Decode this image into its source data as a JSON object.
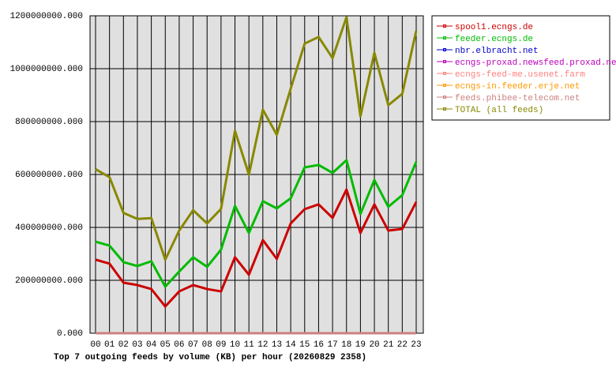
{
  "chart_data": {
    "type": "line",
    "title": "Top 7 outgoing feeds by volume (KB) per hour (20260829 2358)",
    "categories": [
      "00",
      "01",
      "02",
      "03",
      "04",
      "05",
      "06",
      "07",
      "08",
      "09",
      "10",
      "11",
      "12",
      "13",
      "14",
      "15",
      "16",
      "17",
      "18",
      "19",
      "20",
      "21",
      "22",
      "23"
    ],
    "ylim": [
      0,
      1200000000
    ],
    "yticks": [
      {
        "value": 0,
        "label": "0.000"
      },
      {
        "value": 200000000,
        "label": "200000000.000"
      },
      {
        "value": 400000000,
        "label": "400000000.000"
      },
      {
        "value": 600000000,
        "label": "600000000.000"
      },
      {
        "value": 800000000,
        "label": "800000000.000"
      },
      {
        "value": 1000000000,
        "label": "1000000000.000"
      },
      {
        "value": 1200000000,
        "label": "1200000000.000"
      }
    ],
    "grid": true,
    "legend": "right",
    "series": [
      {
        "name": "spool1.ecngs.de",
        "color": "#cc0000",
        "values": [
          278000000,
          263000000,
          191000000,
          182000000,
          167000000,
          101000000,
          158000000,
          182000000,
          167000000,
          158000000,
          287000000,
          221000000,
          352000000,
          281000000,
          415000000,
          469000000,
          487000000,
          436000000,
          543000000,
          379000000,
          487000000,
          388000000,
          394000000,
          496000000
        ]
      },
      {
        "name": "feeder.ecngs.de",
        "color": "#00bb00",
        "values": [
          346000000,
          331000000,
          269000000,
          254000000,
          272000000,
          176000000,
          233000000,
          287000000,
          251000000,
          316000000,
          481000000,
          379000000,
          499000000,
          472000000,
          510000000,
          627000000,
          636000000,
          606000000,
          654000000,
          451000000,
          579000000,
          478000000,
          522000000,
          648000000
        ]
      },
      {
        "name": "nbr.elbracht.net",
        "color": "#0000cc",
        "values": [
          0,
          0,
          0,
          0,
          0,
          0,
          0,
          0,
          0,
          0,
          0,
          0,
          0,
          0,
          0,
          0,
          0,
          0,
          0,
          0,
          0,
          0,
          0,
          0
        ]
      },
      {
        "name": "ecngs-proxad.newsfeed.proxad.net",
        "color": "#bb00bb",
        "values": [
          0,
          0,
          0,
          0,
          0,
          0,
          0,
          0,
          0,
          0,
          0,
          0,
          0,
          0,
          0,
          0,
          0,
          0,
          0,
          0,
          0,
          0,
          0,
          0
        ]
      },
      {
        "name": "ecngs-feed-me.usenet.farm",
        "color": "#ff8080",
        "values": [
          0,
          0,
          0,
          0,
          0,
          0,
          0,
          0,
          0,
          0,
          0,
          0,
          0,
          0,
          0,
          0,
          0,
          0,
          0,
          0,
          0,
          0,
          0,
          0
        ]
      },
      {
        "name": "ecngs-in.feeder.erje.net",
        "color": "#ff9900",
        "values": [
          0,
          0,
          0,
          0,
          0,
          0,
          0,
          0,
          0,
          0,
          0,
          0,
          0,
          0,
          0,
          0,
          0,
          0,
          0,
          0,
          0,
          0,
          0,
          0
        ]
      },
      {
        "name": "feeds.phibee-telecom.net",
        "color": "#cc8080",
        "values": [
          0,
          0,
          0,
          0,
          0,
          0,
          0,
          0,
          0,
          0,
          0,
          0,
          0,
          0,
          0,
          0,
          0,
          0,
          0,
          0,
          0,
          0,
          0,
          0
        ]
      },
      {
        "name": "TOTAL (all feeds)",
        "color": "#888800",
        "values": [
          620000000,
          590000000,
          455000000,
          432000000,
          435000000,
          278000000,
          388000000,
          465000000,
          415000000,
          470000000,
          765000000,
          600000000,
          845000000,
          750000000,
          925000000,
          1095000000,
          1120000000,
          1040000000,
          1195000000,
          820000000,
          1060000000,
          862000000,
          905000000,
          1143000000
        ]
      }
    ]
  }
}
